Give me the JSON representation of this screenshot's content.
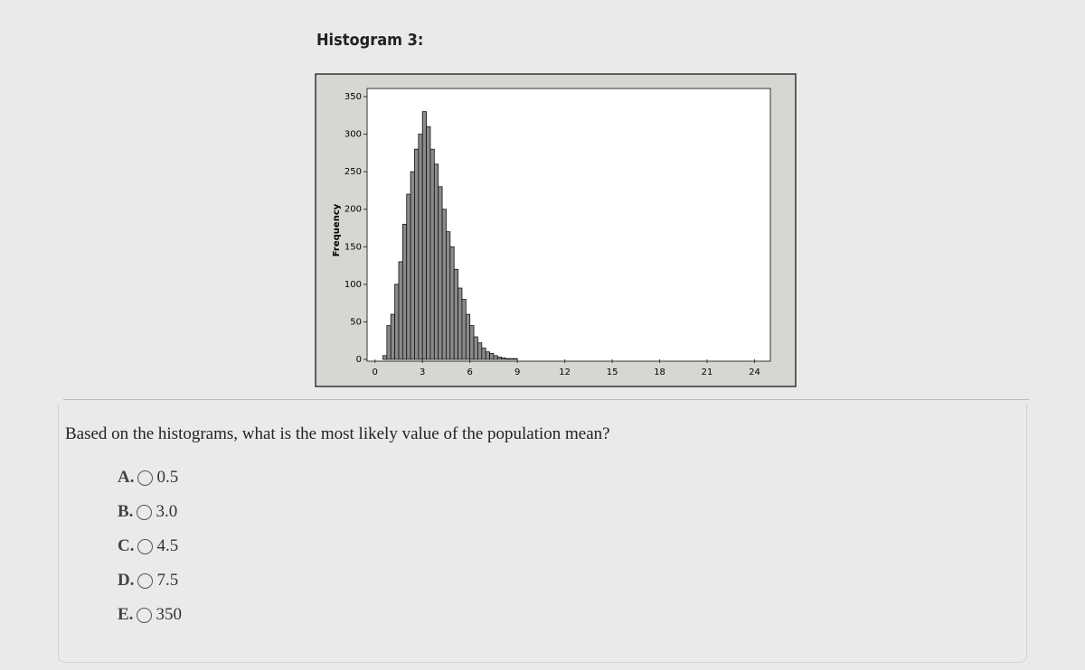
{
  "header": {
    "title": "Histogram 3:"
  },
  "chart_data": {
    "type": "histogram",
    "y_label": "Frequency",
    "color": "#8a8a8a",
    "bins": [
      0.5,
      0.75,
      1,
      1.25,
      1.5,
      1.75,
      2,
      2.25,
      2.5,
      2.75,
      3,
      3.25,
      3.5,
      3.75,
      4,
      4.25,
      4.5,
      4.75,
      5,
      5.25,
      5.5,
      5.75,
      6,
      6.25,
      6.5,
      6.75,
      7,
      7.25,
      7.5,
      7.75,
      8,
      8.25,
      8.5,
      8.75,
      9
    ],
    "values": [
      5,
      45,
      60,
      100,
      130,
      180,
      220,
      250,
      280,
      300,
      330,
      310,
      280,
      260,
      230,
      200,
      170,
      150,
      120,
      95,
      80,
      60,
      45,
      30,
      22,
      15,
      10,
      8,
      5,
      3,
      2,
      1,
      1,
      1
    ],
    "xlim": [
      -0.5,
      25
    ],
    "xticks": [
      0,
      3,
      6,
      9,
      12,
      15,
      18,
      21,
      24
    ],
    "ylim": [
      0,
      350
    ],
    "yticks": [
      0,
      50,
      100,
      150,
      200,
      250,
      300,
      350
    ]
  },
  "question": "Based on the histograms, what is the most likely value of the population mean?",
  "options": [
    {
      "letter": "A.",
      "text": "0.5"
    },
    {
      "letter": "B.",
      "text": "3.0"
    },
    {
      "letter": "C.",
      "text": "4.5"
    },
    {
      "letter": "D.",
      "text": "7.5"
    },
    {
      "letter": "E.",
      "text": "350"
    }
  ]
}
